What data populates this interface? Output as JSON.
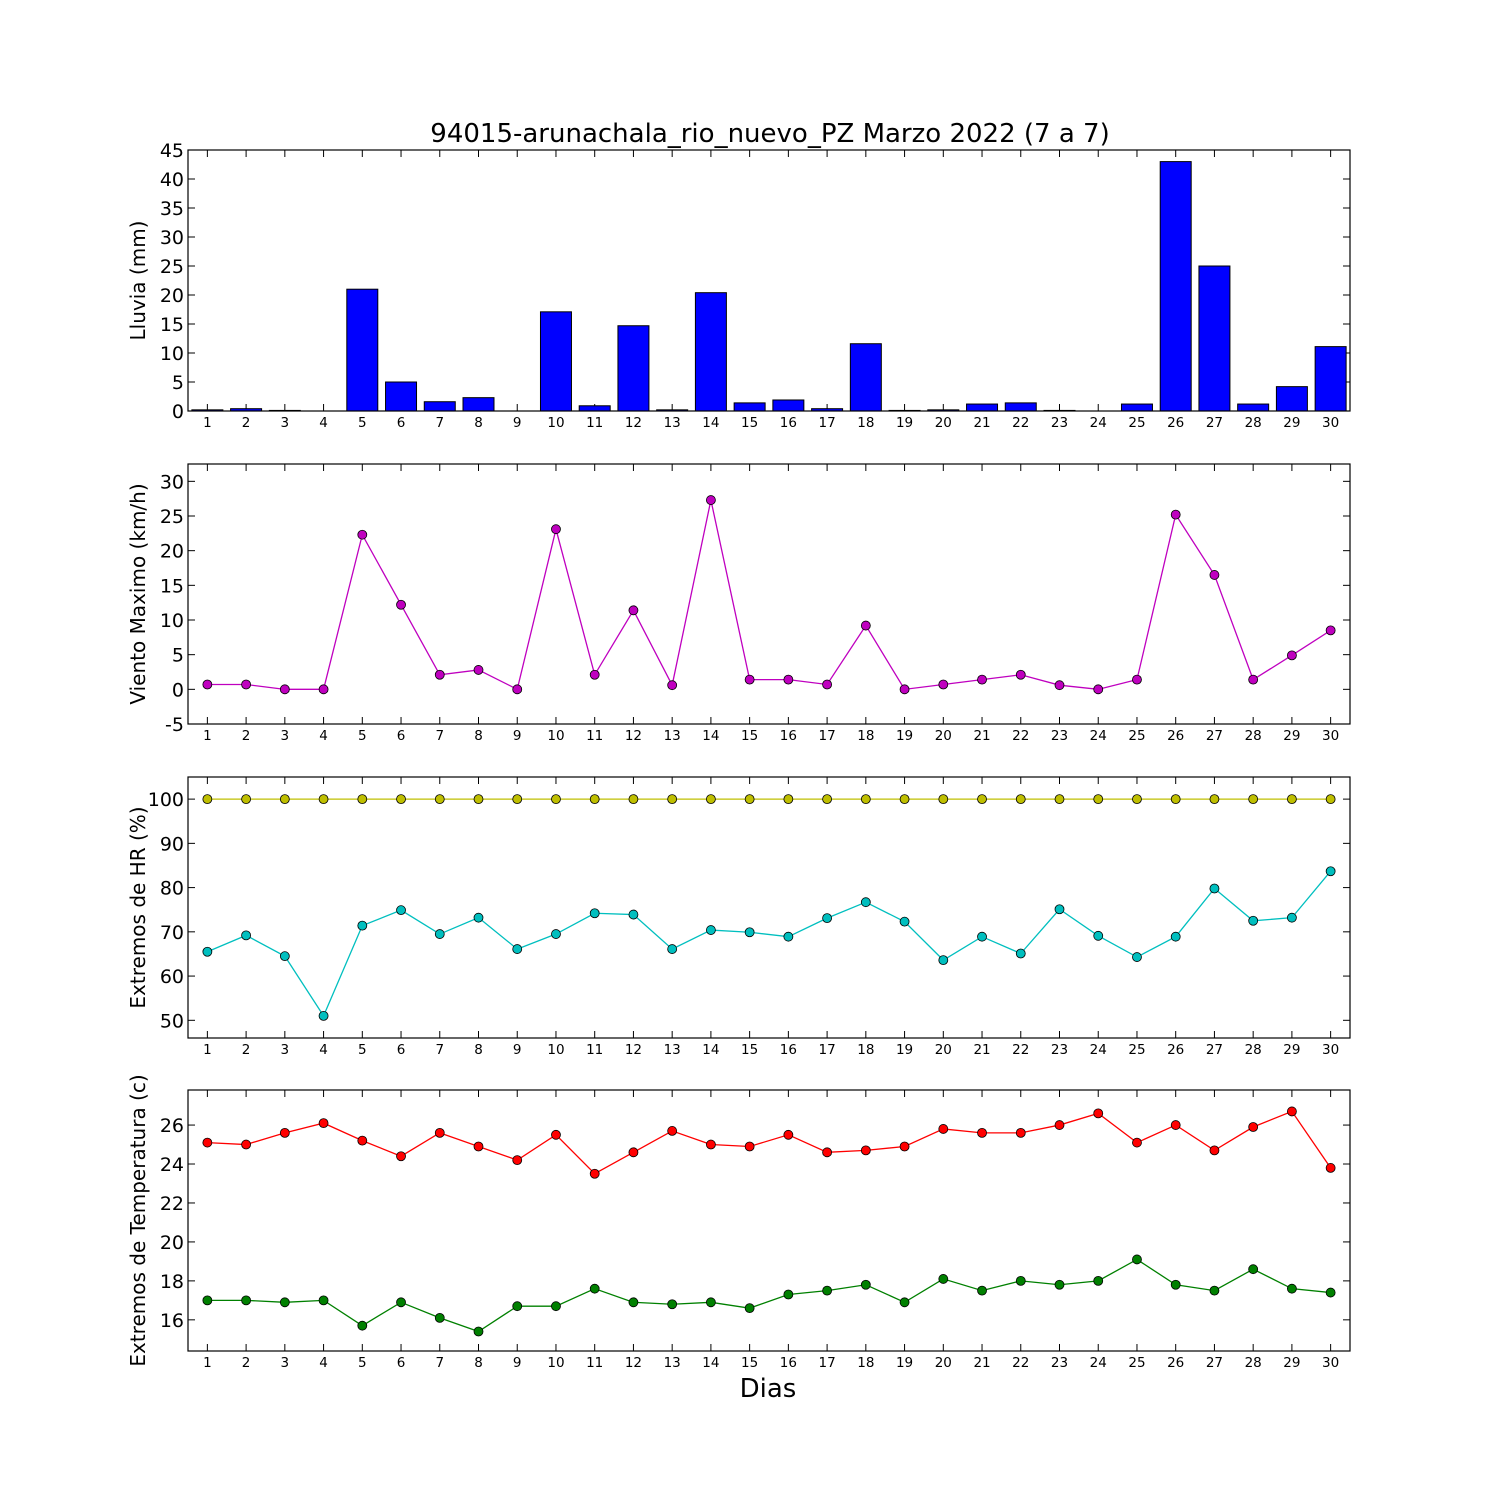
{
  "chart_data": {
    "title": "94015-arunachala_rio_nuevo_PZ Marzo 2022  (7 a 7)",
    "xlabel": "Dias",
    "days": [
      1,
      2,
      3,
      4,
      5,
      6,
      7,
      8,
      9,
      10,
      11,
      12,
      13,
      14,
      15,
      16,
      17,
      18,
      19,
      20,
      21,
      22,
      23,
      24,
      25,
      26,
      27,
      28,
      29,
      30
    ],
    "panels": [
      {
        "type": "bar",
        "ylabel": "Lluvia (mm)",
        "ylim": [
          0,
          45
        ],
        "yticks": [
          0,
          5,
          10,
          15,
          20,
          25,
          30,
          35,
          40,
          45
        ],
        "grid": false,
        "series": [
          {
            "color": "#0000ff",
            "values": [
              0.2,
              0.4,
              0.1,
              0,
              21,
              5,
              1.6,
              2.3,
              0,
              17.1,
              0.9,
              14.7,
              0.2,
              20.4,
              1.4,
              1.9,
              0.4,
              11.6,
              0.1,
              0.2,
              1.2,
              1.4,
              0.1,
              0,
              1.2,
              43,
              25,
              1.2,
              4.2,
              11.1
            ]
          }
        ]
      },
      {
        "type": "line",
        "ylabel": "Viento Maximo (km/h)",
        "ylim": [
          -5,
          32.5
        ],
        "yticks": [
          -5,
          0,
          5,
          10,
          15,
          20,
          25,
          30
        ],
        "grid": false,
        "series": [
          {
            "color": "#bf00bf",
            "values": [
              0.7,
              0.7,
              0,
              0,
              22.3,
              12.2,
              2.1,
              2.8,
              0,
              23.1,
              2.1,
              11.4,
              0.6,
              27.3,
              1.4,
              1.4,
              0.7,
              9.2,
              0,
              0.7,
              1.4,
              2.1,
              0.6,
              0,
              1.4,
              25.2,
              16.5,
              1.4,
              4.9,
              8.5
            ]
          }
        ]
      },
      {
        "type": "line",
        "ylabel": "Extremos de HR (%)",
        "ylim": [
          46,
          105
        ],
        "yticks": [
          50,
          60,
          70,
          80,
          90,
          100
        ],
        "grid": false,
        "series": [
          {
            "color": "#bfbf00",
            "values": [
              100,
              100,
              100,
              100,
              100,
              100,
              100,
              100,
              100,
              100,
              100,
              100,
              100,
              100,
              100,
              100,
              100,
              100,
              100,
              100,
              100,
              100,
              100,
              100,
              100,
              100,
              100,
              100,
              100,
              100
            ]
          },
          {
            "color": "#00bfbf",
            "values": [
              65.5,
              69.2,
              64.5,
              51,
              71.4,
              74.9,
              69.5,
              73.2,
              66.1,
              69.5,
              74.2,
              73.9,
              66.1,
              70.4,
              69.9,
              68.9,
              73.1,
              76.7,
              72.3,
              63.6,
              68.9,
              65.1,
              75.1,
              69.1,
              64.3,
              68.9,
              79.8,
              72.5,
              73.2,
              83.7
            ]
          }
        ]
      },
      {
        "type": "line",
        "ylabel": "Extremos de Temperatura (c)",
        "ylim": [
          14.4,
          27.8
        ],
        "yticks": [
          16,
          18,
          20,
          22,
          24,
          26
        ],
        "grid": false,
        "series": [
          {
            "color": "#ff0000",
            "values": [
              25.1,
              25,
              25.6,
              26.1,
              25.2,
              24.4,
              25.6,
              24.9,
              24.2,
              25.5,
              23.5,
              24.6,
              25.7,
              25,
              24.9,
              25.5,
              24.6,
              24.7,
              24.9,
              25.8,
              25.6,
              25.6,
              26,
              26.6,
              25.1,
              26,
              24.7,
              25.9,
              26.7,
              23.8
            ]
          },
          {
            "color": "#008000",
            "values": [
              17,
              17,
              16.9,
              17,
              15.7,
              16.9,
              16.1,
              15.4,
              16.7,
              16.7,
              17.6,
              16.9,
              16.8,
              16.9,
              16.6,
              17.3,
              17.5,
              17.8,
              16.9,
              18.1,
              17.5,
              18,
              17.8,
              18,
              19.1,
              17.8,
              17.5,
              18.6,
              17.6,
              17.4
            ]
          }
        ]
      }
    ]
  }
}
